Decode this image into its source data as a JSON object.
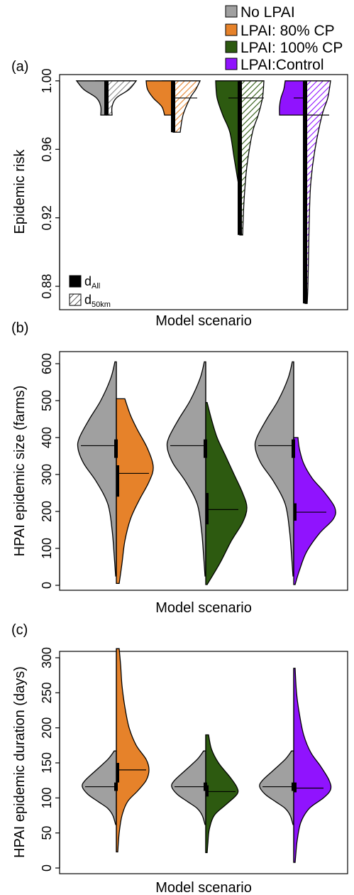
{
  "colors": {
    "no_lpai": "#a0a0a0",
    "lpai_80": "#e6822a",
    "lpai_100": "#2d5a10",
    "lpai_control": "#9013fe"
  },
  "legend": {
    "entries": [
      {
        "label": "No LPAI",
        "color": "#a0a0a0"
      },
      {
        "label": "LPAI: 80% CP",
        "color": "#e6822a"
      },
      {
        "label": "LPAI: 100% CP",
        "color": "#2d5a10"
      },
      {
        "label": "LPAI:Control",
        "color": "#9013fe"
      }
    ]
  },
  "panel_a": {
    "label": "(a)",
    "inset_legend": {
      "solid": {
        "main": "d",
        "sub": "All"
      },
      "hatched": {
        "main": "d",
        "sub": "50km"
      }
    }
  },
  "panel_b": {
    "label": "(b)"
  },
  "panel_c": {
    "label": "(c)"
  },
  "chart_data": [
    {
      "type": "violin",
      "panel": "(a)",
      "xlabel": "Model scenario",
      "ylabel": "Epidemic risk",
      "ylim": [
        0.868,
        1.002
      ],
      "yticks": [
        0.88,
        0.92,
        0.96,
        1.0
      ],
      "ytick_labels": [
        "0.88",
        "0.92",
        "0.96",
        "1.00"
      ],
      "split_legend": [
        "dAll",
        "d50km"
      ],
      "groups": [
        {
          "scenario": "No LPAI",
          "left": {
            "style": "solid",
            "min": 0.98,
            "max": 1.0,
            "median": 1.0,
            "q1": 0.98,
            "q3": 1.0
          },
          "right": {
            "style": "hatched",
            "min": 0.98,
            "max": 1.0,
            "median": 1.0
          }
        },
        {
          "scenario": "LPAI: 80% CP",
          "left": {
            "style": "solid",
            "min": 0.98,
            "max": 1.0,
            "median": 1.0,
            "q1": 0.99,
            "q3": 1.0
          },
          "right": {
            "style": "hatched",
            "min": 0.97,
            "max": 1.0,
            "median": 0.99
          }
        },
        {
          "scenario": "LPAI: 100% CP",
          "left": {
            "style": "solid",
            "min": 0.94,
            "max": 1.0,
            "median": 0.99,
            "q1": 0.98,
            "q3": 1.0
          },
          "right": {
            "style": "hatched",
            "min": 0.91,
            "max": 1.0,
            "median": 0.99
          }
        },
        {
          "scenario": "LPAI:Control",
          "left": {
            "style": "solid",
            "min": 0.98,
            "max": 1.0,
            "median": 0.99,
            "q1": 0.98,
            "q3": 1.0
          },
          "right": {
            "style": "hatched",
            "min": 0.87,
            "max": 1.0,
            "median": 0.98
          }
        }
      ]
    },
    {
      "type": "violin",
      "panel": "(b)",
      "xlabel": "Model scenario",
      "ylabel": "HPAI epidemic size (farms)",
      "ylim": [
        -10,
        615
      ],
      "yticks": [
        0,
        100,
        200,
        300,
        400,
        500,
        600
      ],
      "ytick_labels": [
        "0",
        "100",
        "200",
        "300",
        "400",
        "500",
        "600"
      ],
      "groups": [
        {
          "left": {
            "scenario": "No LPAI",
            "min": 25,
            "max": 605,
            "median": 378,
            "q1": 345,
            "q3": 395
          },
          "right": {
            "scenario": "LPAI: 80% CP",
            "min": 5,
            "max": 505,
            "median": 303,
            "q1": 240,
            "q3": 325
          }
        },
        {
          "left": {
            "scenario": "No LPAI",
            "min": 25,
            "max": 605,
            "median": 378,
            "q1": 345,
            "q3": 395
          },
          "right": {
            "scenario": "LPAI: 100% CP",
            "min": 2,
            "max": 495,
            "median": 205,
            "q1": 165,
            "q3": 250
          }
        },
        {
          "left": {
            "scenario": "No LPAI",
            "min": 25,
            "max": 605,
            "median": 378,
            "q1": 345,
            "q3": 395
          },
          "right": {
            "scenario": "LPAI:Control",
            "min": 2,
            "max": 400,
            "median": 198,
            "q1": 175,
            "q3": 222
          }
        }
      ]
    },
    {
      "type": "violin",
      "panel": "(c)",
      "xlabel": "Model scenario",
      "ylabel": "HPAI epidemic duration (days)",
      "ylim": [
        -5,
        325
      ],
      "yticks": [
        0,
        50,
        100,
        150,
        200,
        250,
        300
      ],
      "ytick_labels": [
        "0",
        "50",
        "100",
        "150",
        "200",
        "250",
        "300"
      ],
      "groups": [
        {
          "left": {
            "scenario": "No LPAI",
            "min": 62,
            "max": 167,
            "median": 116,
            "q1": 110,
            "q3": 122
          },
          "right": {
            "scenario": "LPAI: 80% CP",
            "min": 23,
            "max": 313,
            "median": 140,
            "q1": 122,
            "q3": 150
          }
        },
        {
          "left": {
            "scenario": "No LPAI",
            "min": 62,
            "max": 167,
            "median": 116,
            "q1": 110,
            "q3": 122
          },
          "right": {
            "scenario": "LPAI: 100% CP",
            "min": 22,
            "max": 190,
            "median": 109,
            "q1": 102,
            "q3": 118
          }
        },
        {
          "left": {
            "scenario": "No LPAI",
            "min": 62,
            "max": 167,
            "median": 116,
            "q1": 110,
            "q3": 122
          },
          "right": {
            "scenario": "LPAI:Control",
            "min": 8,
            "max": 285,
            "median": 114,
            "q1": 108,
            "q3": 122
          }
        }
      ]
    }
  ]
}
